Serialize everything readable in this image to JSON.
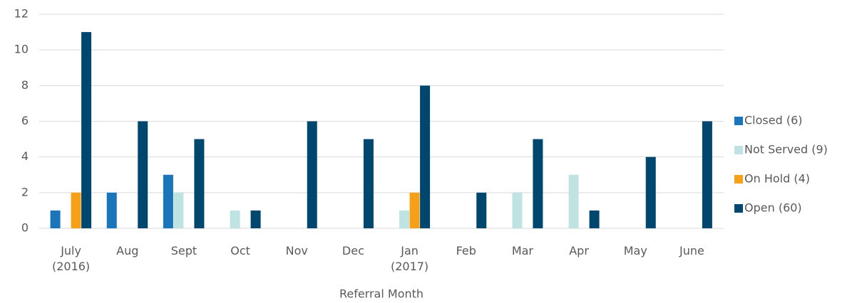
{
  "chart_data": {
    "type": "bar",
    "x_label": "Referral Month",
    "categories": [
      "July (2016)",
      "Aug",
      "Sept",
      "Oct",
      "Nov",
      "Dec",
      "Jan (2017)",
      "Feb",
      "Mar",
      "Apr",
      "May",
      "June"
    ],
    "series": [
      {
        "name": "Closed (6)",
        "color": "#1a75bb",
        "values": [
          1,
          2,
          3,
          0,
          0,
          0,
          0,
          0,
          0,
          0,
          0,
          0
        ]
      },
      {
        "name": "Not Served (9)",
        "color": "#bfe3e3",
        "values": [
          0,
          0,
          2,
          1,
          0,
          0,
          1,
          0,
          2,
          3,
          0,
          0
        ]
      },
      {
        "name": "On Hold (4)",
        "color": "#f6a01a",
        "values": [
          2,
          0,
          0,
          0,
          0,
          0,
          2,
          0,
          0,
          0,
          0,
          0
        ]
      },
      {
        "name": "Open (60)",
        "color": "#00476f",
        "values": [
          11,
          6,
          5,
          1,
          6,
          5,
          8,
          2,
          5,
          1,
          4,
          6
        ]
      }
    ],
    "ylim": [
      0,
      12
    ],
    "yticks": [
      0,
      2,
      4,
      6,
      8,
      10,
      12
    ],
    "grid": true,
    "legend": "right"
  }
}
